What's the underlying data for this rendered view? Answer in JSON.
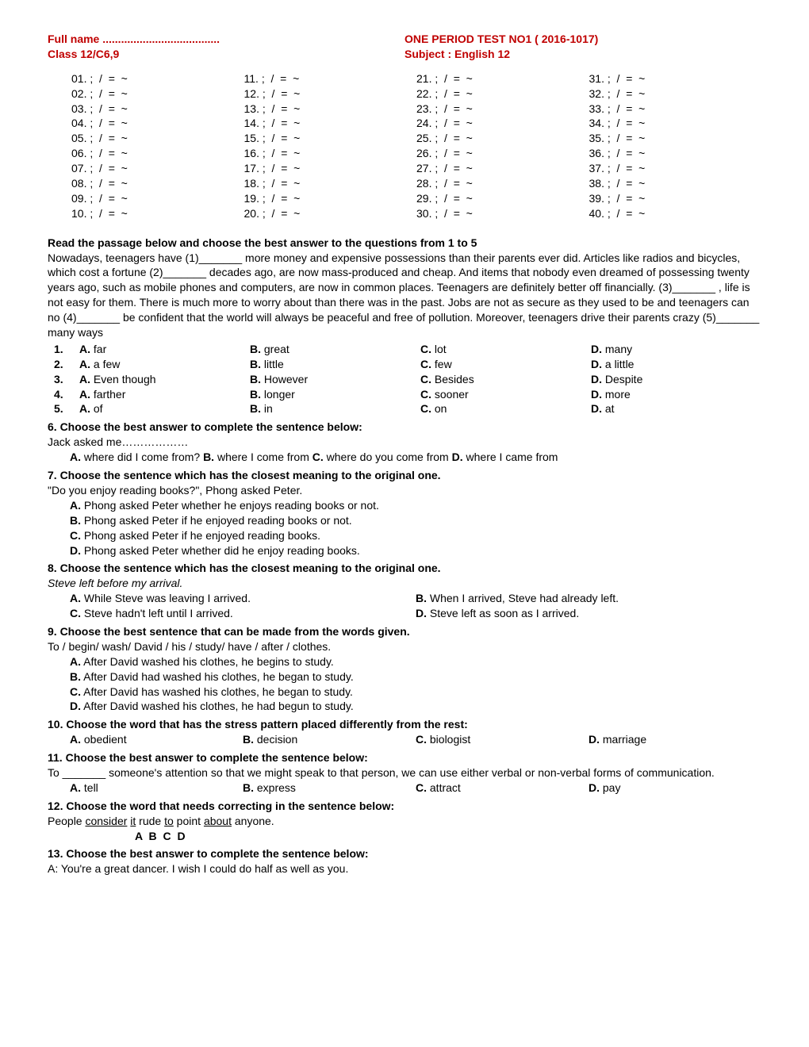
{
  "header": {
    "fullname_label": "Full name ......................................",
    "class_label": "Class 12/C6,9",
    "test_title": "ONE PERIOD TEST NO1 ( 2016-1017)",
    "subject": "Subject : English 12"
  },
  "answer_grid": {
    "symbols": ". ;  /  =  ~",
    "cols": 4,
    "rows_per_col": 10
  },
  "section1_head": "Read the passage below and choose the best answer to the questions from 1 to 5",
  "passage": "Nowadays, teenagers have  (1)_______  more money and expensive possessions than their parents ever did. Articles like radios and bicycles, which cost a fortune  (2)_______  decades ago, are now mass-produced and cheap. And items that nobody even dreamed of possessing twenty years ago, such as mobile phones and computers, are now in common places. Teenagers are definitely better off financially. (3)_______ , life is not easy for them. There is much more to worry about than there was in the past. Jobs are not as secure as they used to be and teenagers can no  (4)_______  be confident that the world will always be peaceful and free of pollution. Moreover, teenagers  drive their parents  crazy  (5)_______  many ways",
  "mc": [
    {
      "n": "1.",
      "A": "far",
      "B": "great",
      "C": "lot",
      "D": "many"
    },
    {
      "n": "2.",
      "A": "a few",
      "B": "little",
      "C": "few",
      "D": "a little"
    },
    {
      "n": "3.",
      "A": "Even though",
      "B": "However",
      "C": "Besides",
      "D": "Despite"
    },
    {
      "n": "4.",
      "A": "farther",
      "B": "longer",
      "C": "sooner",
      "D": "more"
    },
    {
      "n": "5.",
      "A": "of",
      "B": "in",
      "C": "on",
      "D": "at"
    }
  ],
  "q6": {
    "prompt": "6. Choose the best answer to complete the sentence below:",
    "line": "Jack asked me………………",
    "opts": "A. where did I come from? B.  where I come from  C. where do you come from D.  where I came from"
  },
  "q7": {
    "prompt": "7. Choose the sentence which has the closest meaning to the original one.",
    "line": "\"Do you enjoy reading books?\", Phong asked Peter.",
    "A": "A. Phong asked Peter whether he enjoys reading books or not.",
    "B": "B. Phong asked Peter if he enjoyed reading books or not.",
    "C": "C.  Phong asked Peter if he enjoyed reading books.",
    "D": "D. Phong asked Peter whether did he enjoy reading books."
  },
  "q8": {
    "prompt_a": "8. Choose the sentence which has the closest meaning to the original one",
    "prompt_b": ".",
    "line": "Steve left before my arrival.",
    "A": "A.  While Steve was leaving I arrived.",
    "B": "B. When I arrived, Steve had already left.",
    "C": "C. Steve hadn't left until I arrived.",
    "D": "D. Steve left as soon as I arrived."
  },
  "q9": {
    "prompt": "9. Choose the best sentence that can be made from the words given.",
    "line": "To / begin/ wash/ David / his / study/ have / after / clothes.",
    "A": "A. After David   washed his clothes, he begins to study.",
    "B": "B. After David  had washed his clothes, he began to study.",
    "C": "C. After David  has washed his clothes, he began to study.",
    "D": "D. After David  washed his clothes, he had begun to study."
  },
  "q10": {
    "prompt": "10. Choose the word that has the stress pattern placed differently from the rest:",
    "A": "obedient",
    "B": "decision",
    "C": "biologist",
    "D": "marriage"
  },
  "q11": {
    "prompt": "11. Choose the best answer to complete the sentence below:",
    "line": "To _______ someone's attention so that we might speak to that person, we can use either verbal or non-verbal forms of communication.",
    "A": "tell",
    "B": "express",
    "C": "attract",
    "D": "pay"
  },
  "q12": {
    "prompt": "12. Choose the word that needs correcting in the sentence below:",
    "pre": "   People ",
    "u1": "consider",
    "sp1": " ",
    "u2": "it",
    "sp2": " rude ",
    "u3": "to",
    "sp3": " point ",
    "u4": "about",
    "post": " anyone.",
    "abcd": "A     B        C        D"
  },
  "q13": {
    "prompt": "13.  Choose the best answer to complete the sentence below:",
    "line": "A: You're a great dancer. I wish I could do half as well as you."
  }
}
